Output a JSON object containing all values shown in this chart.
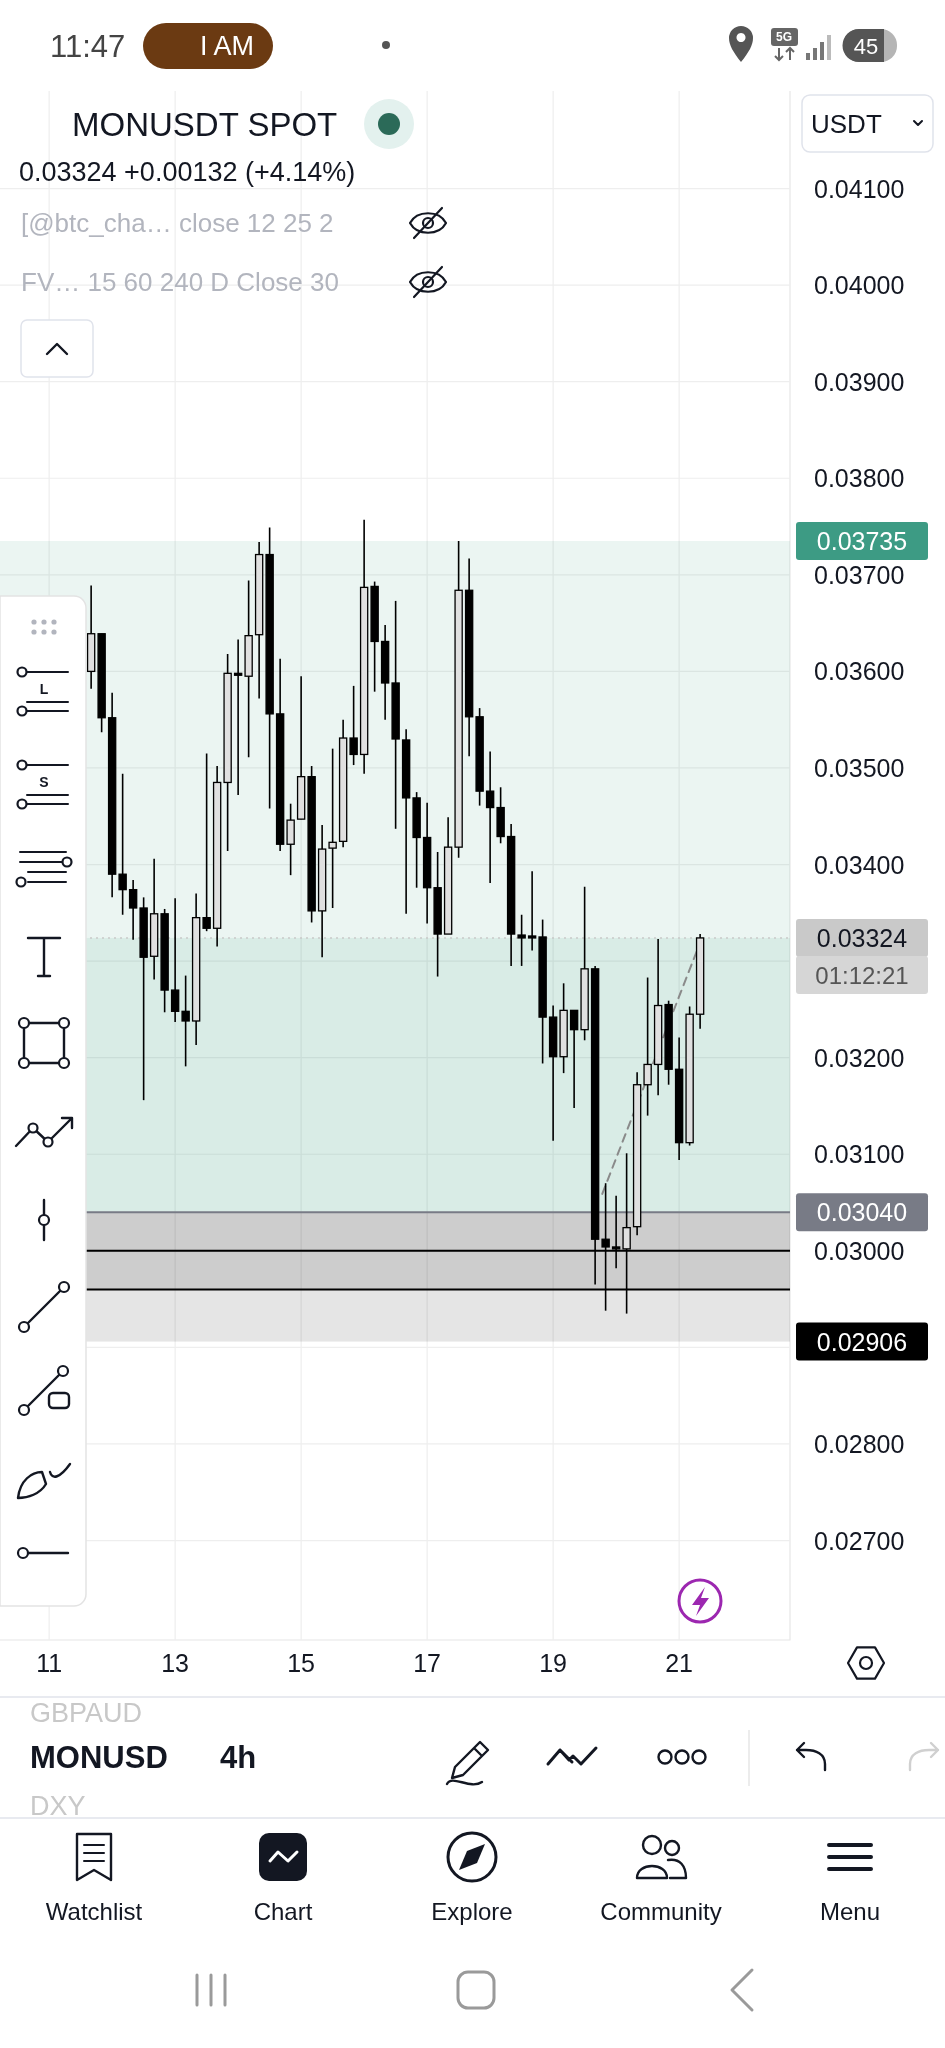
{
  "chart_data": {
    "type": "candlestick",
    "title": "MONUSDT SPOT",
    "subtitle": "0.03324 +0.00132 (+4.14%)",
    "x": [
      11.6667,
      11.8333,
      12,
      12.1667,
      12.3333,
      12.5,
      12.6667,
      12.8333,
      13,
      13.1667,
      13.3333,
      13.5,
      13.6667,
      13.8333,
      14,
      14.1667,
      14.3333,
      14.5,
      14.6667,
      14.8333,
      15,
      15.1667,
      15.3333,
      15.5,
      15.6667,
      15.8333,
      16,
      16.1667,
      16.3333,
      16.5,
      16.6667,
      16.8333,
      17,
      17.1667,
      17.3333,
      17.5,
      17.6667,
      17.8333,
      18,
      18.1667,
      18.3333,
      18.5,
      18.6667,
      18.8333,
      19,
      19.1667,
      19.3333,
      19.5,
      19.6667,
      19.8333,
      20,
      20.1667,
      20.3333,
      20.5,
      20.6667,
      20.8333,
      21,
      21.1667,
      21.3333
    ],
    "ohlc": [
      [
        0.036,
        0.03689,
        0.03582,
        0.03639
      ],
      [
        0.03639,
        0.03639,
        0.03537,
        0.03552
      ],
      [
        0.03552,
        0.03578,
        0.03366,
        0.0339
      ],
      [
        0.0339,
        0.03494,
        0.03348,
        0.03374
      ],
      [
        0.03374,
        0.03384,
        0.03322,
        0.03355
      ],
      [
        0.03355,
        0.03366,
        0.03156,
        0.03304
      ],
      [
        0.03305,
        0.03406,
        0.03281,
        0.03349
      ],
      [
        0.03349,
        0.03354,
        0.03247,
        0.0327
      ],
      [
        0.0327,
        0.03365,
        0.03237,
        0.03248
      ],
      [
        0.03248,
        0.03285,
        0.03191,
        0.03238
      ],
      [
        0.03238,
        0.0337,
        0.03213,
        0.03345
      ],
      [
        0.03345,
        0.03515,
        0.03331,
        0.03334
      ],
      [
        0.03334,
        0.03502,
        0.03315,
        0.03485
      ],
      [
        0.03485,
        0.03618,
        0.03414,
        0.03598
      ],
      [
        0.03598,
        0.03633,
        0.03472,
        0.03596
      ],
      [
        0.03595,
        0.03694,
        0.03511,
        0.03637
      ],
      [
        0.03638,
        0.03734,
        0.03572,
        0.03721
      ],
      [
        0.03721,
        0.03749,
        0.03458,
        0.03556
      ],
      [
        0.03556,
        0.03613,
        0.03414,
        0.03421
      ],
      [
        0.03421,
        0.03463,
        0.03389,
        0.03446
      ],
      [
        0.03447,
        0.03595,
        0.03447,
        0.03491
      ],
      [
        0.03491,
        0.03502,
        0.0334,
        0.03352
      ],
      [
        0.03352,
        0.03441,
        0.03304,
        0.03416
      ],
      [
        0.03417,
        0.0352,
        0.03355,
        0.03423
      ],
      [
        0.03424,
        0.0355,
        0.03418,
        0.03531
      ],
      [
        0.03531,
        0.03585,
        0.03503,
        0.03514
      ],
      [
        0.03514,
        0.03757,
        0.03494,
        0.03687
      ],
      [
        0.03688,
        0.03693,
        0.03579,
        0.03631
      ],
      [
        0.03631,
        0.03648,
        0.0355,
        0.03588
      ],
      [
        0.03588,
        0.03673,
        0.03437,
        0.0353
      ],
      [
        0.03529,
        0.0354,
        0.03349,
        0.03469
      ],
      [
        0.03469,
        0.03475,
        0.03376,
        0.03428
      ],
      [
        0.03428,
        0.03464,
        0.03339,
        0.03376
      ],
      [
        0.03376,
        0.03413,
        0.03284,
        0.03328
      ],
      [
        0.03328,
        0.03449,
        0.03328,
        0.03418
      ],
      [
        0.03418,
        0.03735,
        0.03407,
        0.03684
      ],
      [
        0.03684,
        0.03717,
        0.03512,
        0.03553
      ],
      [
        0.03553,
        0.03562,
        0.03461,
        0.03476
      ],
      [
        0.03476,
        0.03517,
        0.03381,
        0.03459
      ],
      [
        0.03459,
        0.0348,
        0.03422,
        0.03429
      ],
      [
        0.03429,
        0.03442,
        0.03295,
        0.03328
      ],
      [
        0.03327,
        0.03348,
        0.03295,
        0.03324
      ],
      [
        0.03326,
        0.03393,
        0.03311,
        0.03324
      ],
      [
        0.03325,
        0.03343,
        0.03194,
        0.03242
      ],
      [
        0.03242,
        0.03254,
        0.03114,
        0.03201
      ],
      [
        0.03201,
        0.03277,
        0.03184,
        0.03249
      ],
      [
        0.03249,
        0.03249,
        0.03148,
        0.03229
      ],
      [
        0.03229,
        0.03377,
        0.03218,
        0.03292
      ],
      [
        0.03292,
        0.03295,
        0.02965,
        0.03012
      ],
      [
        0.03012,
        0.0307,
        0.02938,
        0.03004
      ],
      [
        0.03004,
        0.03057,
        0.02982,
        0.03002
      ],
      [
        0.03002,
        0.03101,
        0.02935,
        0.03024
      ],
      [
        0.03025,
        0.03185,
        0.03016,
        0.03172
      ],
      [
        0.03172,
        0.03283,
        0.0314,
        0.03193
      ],
      [
        0.03193,
        0.03323,
        0.03161,
        0.03254
      ],
      [
        0.03255,
        0.03259,
        0.03172,
        0.03188
      ],
      [
        0.03188,
        0.03221,
        0.03094,
        0.03112
      ],
      [
        0.03112,
        0.03253,
        0.03109,
        0.03245
      ],
      [
        0.03245,
        0.03328,
        0.0323,
        0.03324
      ]
    ],
    "series": [
      {
        "type": "line",
        "x": [
          19.78,
          21.35
        ],
        "values": [
          0.03059,
          0.03322
        ],
        "color": "#8a8a8a",
        "line_style": "dashed"
      }
    ],
    "xlim": [
      10.22,
      22.76
    ],
    "xticks": [
      11,
      13,
      15,
      17,
      19,
      21
    ],
    "ylim": [
      0.02597,
      0.04201
    ],
    "yticks": [
      {
        "value": 0.027,
        "label": "0.02700"
      },
      {
        "value": 0.028,
        "label": "0.02800"
      },
      {
        "value": 0.029,
        "label": null
      },
      {
        "value": 0.03,
        "label": "0.03000"
      },
      {
        "value": 0.031,
        "label": "0.03100"
      },
      {
        "value": 0.032,
        "label": "0.03200"
      },
      {
        "value": 0.033,
        "label": null
      },
      {
        "value": 0.034,
        "label": "0.03400"
      },
      {
        "value": 0.035,
        "label": "0.03500"
      },
      {
        "value": 0.036,
        "label": "0.03600"
      },
      {
        "value": 0.037,
        "label": "0.03700"
      },
      {
        "value": 0.038,
        "label": "0.03800"
      },
      {
        "value": 0.039,
        "label": "0.03900"
      },
      {
        "value": 0.04,
        "label": "0.04000"
      },
      {
        "value": 0.041,
        "label": "0.04100"
      }
    ],
    "grid": true,
    "bands": [
      {
        "axis": "y",
        "from": 0.0304,
        "to": 0.03735,
        "label": "0.03735",
        "color": "#3d9b84"
      },
      {
        "axis": "y",
        "from": 0.0304,
        "to": 0.03324,
        "color": "#3d9b84"
      },
      {
        "axis": "y",
        "from": 0.0304,
        "to": 0.02906,
        "label": "0.02906",
        "color": "#000000"
      },
      {
        "axis": "y",
        "from": 0.0296,
        "to": 0.0304,
        "color": "#000000"
      }
    ],
    "ref_lines": [
      {
        "axis": "y",
        "value": 0.03,
        "color": "#000000"
      },
      {
        "axis": "y",
        "value": 0.0296,
        "color": "#000000"
      },
      {
        "axis": "y",
        "value": 0.0304,
        "label": "0.03040",
        "color": "#787b86"
      },
      {
        "axis": "y",
        "value": 0.03324,
        "label": "0.03324",
        "color": "#c9c9c9",
        "line_style": "dotted"
      }
    ],
    "annotations": [
      "11:47",
      "I AM",
      "5G",
      "45",
      "[@btc_cha… close 12 25 2",
      "FV… 15 60 240 D Close 30",
      "01:12:21",
      "USDT",
      "L",
      "S",
      "GBPAUD",
      "MONUSD",
      "4h",
      "DXY",
      "Watchlist",
      "Chart",
      "Explore",
      "Community",
      "Menu"
    ]
  }
}
